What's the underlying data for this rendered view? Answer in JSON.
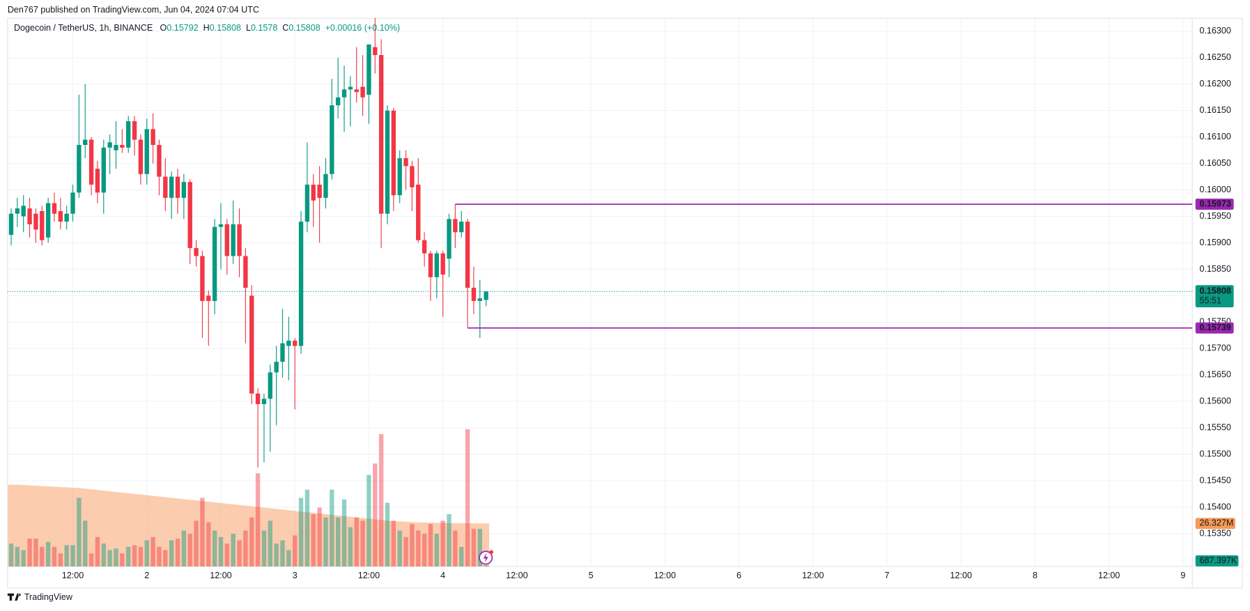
{
  "header": {
    "published": "Den767 published on TradingView.com, Jun 04, 2024 07:04 UTC"
  },
  "footer": {
    "brand": "TradingView"
  },
  "chart_data": {
    "type": "candlestick",
    "title": "Dogecoin / TetherUS, 1h, BINANCE",
    "legend": {
      "open_label": "O",
      "open": 0.15792,
      "high_label": "H",
      "high": 0.15808,
      "low_label": "L",
      "low": 0.1578,
      "close_label": "C",
      "close": 0.15808,
      "change": {
        "value": 0.00016,
        "label": "+0.00016 (+0.10%)"
      }
    },
    "up_color": "#089981",
    "down_color": "#f23645",
    "grid": true,
    "x": [
      2,
      3,
      4,
      5,
      6,
      7,
      8,
      9,
      10,
      11,
      12,
      13,
      14,
      15,
      16,
      17,
      18,
      19,
      20,
      21,
      22,
      23,
      24,
      25,
      26,
      27,
      28,
      29,
      30,
      31,
      32,
      33,
      34,
      35,
      36,
      37,
      38,
      39,
      40,
      41,
      42,
      43,
      44,
      45,
      46,
      47,
      48,
      49,
      50,
      51,
      52,
      53,
      54,
      55,
      56,
      57,
      58,
      59,
      60,
      61,
      62,
      63,
      64,
      65,
      66,
      67,
      68,
      69,
      70,
      71,
      72,
      73,
      74,
      75,
      76,
      77,
      78,
      79
    ],
    "open": [
      0.15915,
      0.15955,
      0.1595,
      0.15965,
      0.15955,
      0.1596,
      0.1591,
      0.15975,
      0.1596,
      0.1594,
      0.15955,
      0.15995,
      0.16085,
      0.16095,
      0.1604,
      0.15995,
      0.1608,
      0.16075,
      0.16085,
      0.1608,
      0.1613,
      0.16095,
      0.1603,
      0.16115,
      0.16085,
      0.16025,
      0.15985,
      0.16025,
      0.15985,
      0.16015,
      0.1589,
      0.15875,
      0.158,
      0.1579,
      0.1593,
      0.15935,
      0.15875,
      0.15935,
      0.15875,
      0.158,
      0.15615,
      0.15595,
      0.15605,
      0.15655,
      0.15675,
      0.15705,
      0.15715,
      0.15705,
      0.1594,
      0.1601,
      0.1601,
      0.15985,
      0.1603,
      0.1616,
      0.16175,
      0.1619,
      0.1619,
      0.16195,
      0.1618,
      0.1627,
      0.16255,
      0.15955,
      0.1615,
      0.1599,
      0.1606,
      0.16045,
      0.1601,
      0.15905,
      0.1588,
      0.15835,
      0.1588,
      0.1587,
      0.15945,
      0.1592,
      0.1594,
      0.15815,
      0.1579,
      0.15792
    ],
    "high": [
      0.15965,
      0.15985,
      0.1599,
      0.15985,
      0.15965,
      0.1597,
      0.15985,
      0.15995,
      0.15985,
      0.1597,
      0.1601,
      0.1618,
      0.162,
      0.161,
      0.16055,
      0.16095,
      0.16105,
      0.1613,
      0.16115,
      0.1614,
      0.1614,
      0.16105,
      0.16135,
      0.16145,
      0.16095,
      0.1606,
      0.16035,
      0.1604,
      0.1603,
      0.1602,
      0.15905,
      0.15885,
      0.1581,
      0.15945,
      0.15975,
      0.15945,
      0.1598,
      0.15965,
      0.1589,
      0.1582,
      0.15625,
      0.15615,
      0.1567,
      0.15705,
      0.15775,
      0.1576,
      0.1572,
      0.1596,
      0.1609,
      0.1603,
      0.16045,
      0.1606,
      0.1621,
      0.1625,
      0.16235,
      0.16215,
      0.1627,
      0.16255,
      0.16275,
      0.16325,
      0.16285,
      0.1616,
      0.16155,
      0.16075,
      0.16075,
      0.16055,
      0.1606,
      0.1592,
      0.15885,
      0.15885,
      0.15885,
      0.15955,
      0.15973,
      0.1596,
      0.15945,
      0.15855,
      0.1583,
      0.15808
    ],
    "low": [
      0.15895,
      0.1593,
      0.1592,
      0.1591,
      0.159,
      0.15895,
      0.159,
      0.1594,
      0.15925,
      0.15925,
      0.1594,
      0.15985,
      0.1606,
      0.1599,
      0.15975,
      0.15955,
      0.1603,
      0.1604,
      0.1607,
      0.1607,
      0.16065,
      0.1601,
      0.1601,
      0.1605,
      0.1599,
      0.1596,
      0.15945,
      0.15955,
      0.15945,
      0.1586,
      0.15855,
      0.1572,
      0.15705,
      0.15765,
      0.1585,
      0.1584,
      0.1586,
      0.15835,
      0.1571,
      0.15595,
      0.15475,
      0.15485,
      0.15505,
      0.15555,
      0.15645,
      0.1564,
      0.15585,
      0.1569,
      0.1592,
      0.1593,
      0.159,
      0.15965,
      0.1602,
      0.16135,
      0.1611,
      0.1612,
      0.16165,
      0.1614,
      0.16125,
      0.1622,
      0.1589,
      0.15935,
      0.1596,
      0.15975,
      0.16,
      0.1596,
      0.159,
      0.15855,
      0.1579,
      0.15795,
      0.1576,
      0.15835,
      0.1589,
      0.1591,
      0.15739,
      0.15765,
      0.1572,
      0.1578
    ],
    "close": [
      0.15955,
      0.15965,
      0.1597,
      0.15935,
      0.15925,
      0.15905,
      0.15975,
      0.15955,
      0.1594,
      0.15955,
      0.15995,
      0.16085,
      0.16095,
      0.1601,
      0.15995,
      0.1608,
      0.1609,
      0.16085,
      0.1608,
      0.1613,
      0.16095,
      0.1603,
      0.16115,
      0.16085,
      0.16025,
      0.15985,
      0.16025,
      0.15985,
      0.16015,
      0.1589,
      0.15875,
      0.1579,
      0.1579,
      0.1593,
      0.15935,
      0.15875,
      0.15935,
      0.15875,
      0.15815,
      0.15615,
      0.15595,
      0.15605,
      0.15655,
      0.15675,
      0.1571,
      0.15715,
      0.15705,
      0.1594,
      0.1601,
      0.1598,
      0.15985,
      0.1603,
      0.1616,
      0.16175,
      0.1619,
      0.16195,
      0.16185,
      0.16175,
      0.16275,
      0.16255,
      0.15955,
      0.1615,
      0.1599,
      0.1606,
      0.16045,
      0.16005,
      0.15905,
      0.1588,
      0.15835,
      0.1588,
      0.1584,
      0.15945,
      0.1592,
      0.1594,
      0.15815,
      0.1579,
      0.15795,
      0.15808
    ],
    "volume": [
      14000000,
      12000000,
      10000000,
      17000000,
      17000000,
      12000000,
      15000000,
      12000000,
      8000000,
      13000000,
      13000000,
      42000000,
      28000000,
      8000000,
      18000000,
      14000000,
      10000000,
      11000000,
      8000000,
      12000000,
      13000000,
      12000000,
      16000000,
      18000000,
      12000000,
      10000000,
      16000000,
      17000000,
      22000000,
      20000000,
      28000000,
      42000000,
      27000000,
      22000000,
      18000000,
      14000000,
      20000000,
      16000000,
      22000000,
      30000000,
      57000000,
      22000000,
      28000000,
      14000000,
      16000000,
      10000000,
      19000000,
      42000000,
      47000000,
      32000000,
      36000000,
      30000000,
      47000000,
      30000000,
      41000000,
      24000000,
      30000000,
      28000000,
      56000000,
      63000000,
      81000000,
      39000000,
      28000000,
      22000000,
      18000000,
      26000000,
      22000000,
      20000000,
      26000000,
      20000000,
      28000000,
      32000000,
      22000000,
      12000000,
      84000000,
      23000000,
      23000000,
      687397
    ],
    "volume_ma": [
      50000000,
      50000000,
      49800000,
      49600000,
      49400000,
      49200000,
      49000000,
      48800000,
      48600000,
      48400000,
      48200000,
      48000000,
      47600000,
      47200000,
      46800000,
      46400000,
      46000000,
      45600000,
      45200000,
      44800000,
      44400000,
      44000000,
      43600000,
      43200000,
      42800000,
      42400000,
      42000000,
      41600000,
      41200000,
      40800000,
      40400000,
      40000000,
      39600000,
      39200000,
      38800000,
      38400000,
      38000000,
      37600000,
      37200000,
      36800000,
      36400000,
      36000000,
      35600000,
      35200000,
      34800000,
      34400000,
      34000000,
      33600000,
      33200000,
      32800000,
      32400000,
      32000000,
      31600000,
      31200000,
      30800000,
      30400000,
      30000000,
      29600000,
      29200000,
      28800000,
      28400000,
      28000000,
      27800000,
      27600000,
      27400000,
      27200000,
      27000000,
      26900000,
      26800000,
      26700000,
      26600000,
      26550000,
      26500000,
      26450000,
      26400000,
      26370000,
      26340000,
      26327000
    ],
    "volume_ma_color": "#f7a26b",
    "volume_ylim": [
      0,
      335000000
    ],
    "volume_ma_marker": {
      "value": 26327000,
      "label": "26.327M"
    },
    "volume_marker": {
      "value": 687397,
      "label": "687.397K"
    },
    "xlim": [
      1.42,
      193.5
    ],
    "xticks": [
      {
        "value": 12,
        "label": "12:00"
      },
      {
        "value": 24,
        "label": "2"
      },
      {
        "value": 36,
        "label": "12:00"
      },
      {
        "value": 48,
        "label": "3"
      },
      {
        "value": 60,
        "label": "12:00"
      },
      {
        "value": 72,
        "label": "4"
      },
      {
        "value": 84,
        "label": "12:00"
      },
      {
        "value": 96,
        "label": "5"
      },
      {
        "value": 108,
        "label": "12:00"
      },
      {
        "value": 120,
        "label": "6"
      },
      {
        "value": 132,
        "label": "12:00"
      },
      {
        "value": 144,
        "label": "7"
      },
      {
        "value": 156,
        "label": "12:00"
      },
      {
        "value": 168,
        "label": "8"
      },
      {
        "value": 180,
        "label": "12:00"
      },
      {
        "value": 192,
        "label": "9"
      }
    ],
    "ylim": [
      0.15288,
      0.16323
    ],
    "yticks": [
      {
        "value": 0.1535,
        "label": "0.15350"
      },
      {
        "value": 0.154,
        "label": "0.15400"
      },
      {
        "value": 0.1545,
        "label": "0.15450"
      },
      {
        "value": 0.155,
        "label": "0.15500"
      },
      {
        "value": 0.1555,
        "label": "0.15550"
      },
      {
        "value": 0.156,
        "label": "0.15600"
      },
      {
        "value": 0.1565,
        "label": "0.15650"
      },
      {
        "value": 0.157,
        "label": "0.15700"
      },
      {
        "value": 0.1575,
        "label": "0.15750"
      },
      {
        "value": 0.158,
        "label": "0.15800"
      },
      {
        "value": 0.1585,
        "label": "0.15850"
      },
      {
        "value": 0.159,
        "label": "0.15900"
      },
      {
        "value": 0.1595,
        "label": "0.15950"
      },
      {
        "value": 0.16,
        "label": "0.16000"
      },
      {
        "value": 0.1605,
        "label": "0.16050"
      },
      {
        "value": 0.161,
        "label": "0.16100"
      },
      {
        "value": 0.1615,
        "label": "0.16150"
      },
      {
        "value": 0.162,
        "label": "0.16200"
      },
      {
        "value": 0.1625,
        "label": "0.16250"
      },
      {
        "value": 0.163,
        "label": "0.16300"
      }
    ],
    "levels": [
      {
        "value": 0.15973,
        "x_start": 74,
        "color": "#9c27b0"
      },
      {
        "value": 0.15739,
        "x_start": 76,
        "color": "#9c27b0"
      }
    ],
    "last": {
      "value": 0.15808,
      "countdown": "55:51",
      "color": "#089981"
    }
  }
}
